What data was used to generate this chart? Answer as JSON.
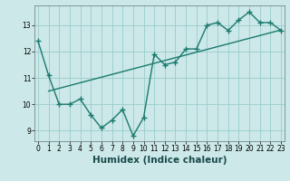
{
  "title": "",
  "xlabel": "Humidex (Indice chaleur)",
  "ylabel": "",
  "bg_color": "#cce8e8",
  "grid_color": "#99cccc",
  "line_color": "#1a7a6e",
  "x": [
    0,
    1,
    2,
    3,
    4,
    5,
    6,
    7,
    8,
    9,
    10,
    11,
    12,
    13,
    14,
    15,
    16,
    17,
    18,
    19,
    20,
    21,
    22,
    23
  ],
  "y": [
    12.4,
    11.1,
    10.0,
    10.0,
    10.2,
    9.6,
    9.1,
    9.4,
    9.8,
    8.8,
    9.5,
    11.9,
    11.5,
    11.6,
    12.1,
    12.1,
    13.0,
    13.1,
    12.8,
    13.2,
    13.5,
    13.1,
    13.1,
    12.8
  ],
  "trend_x": [
    1,
    23
  ],
  "trend_y": [
    10.5,
    12.82
  ],
  "ylim": [
    8.6,
    13.75
  ],
  "xlim": [
    -0.3,
    23.3
  ],
  "yticks": [
    9,
    10,
    11,
    12,
    13
  ],
  "xticks": [
    0,
    1,
    2,
    3,
    4,
    5,
    6,
    7,
    8,
    9,
    10,
    11,
    12,
    13,
    14,
    15,
    16,
    17,
    18,
    19,
    20,
    21,
    22,
    23
  ],
  "marker": "+",
  "marker_size": 4,
  "linewidth": 1.0,
  "tick_fontsize": 5.5,
  "xlabel_fontsize": 7.5
}
